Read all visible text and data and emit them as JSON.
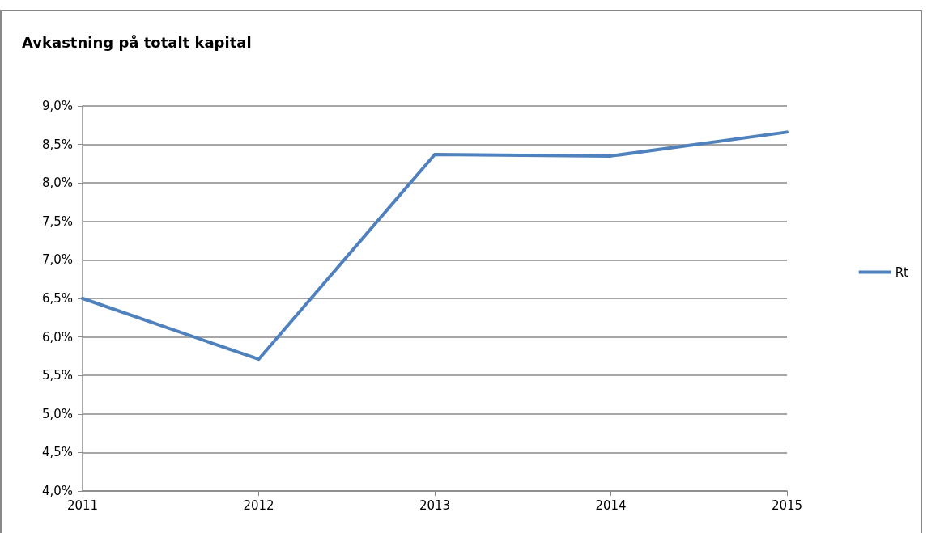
{
  "chart_data": {
    "type": "line",
    "title": "Avkastning på totalt kapital",
    "categories": [
      "2011",
      "2012",
      "2013",
      "2014",
      "2015"
    ],
    "series": [
      {
        "name": "Rt",
        "color": "#4f81bd",
        "values": [
          6.5,
          5.71,
          8.37,
          8.35,
          8.66
        ]
      }
    ],
    "ylim": [
      4.0,
      9.0
    ],
    "yticks": [
      {
        "value": 4.0,
        "label": "4,0%"
      },
      {
        "value": 4.5,
        "label": "4,5%"
      },
      {
        "value": 5.0,
        "label": "5,0%"
      },
      {
        "value": 5.5,
        "label": "5,5%"
      },
      {
        "value": 6.0,
        "label": "6,0%"
      },
      {
        "value": 6.5,
        "label": "6,5%"
      },
      {
        "value": 7.0,
        "label": "7,0%"
      },
      {
        "value": 7.5,
        "label": "7,5%"
      },
      {
        "value": 8.0,
        "label": "8,0%"
      },
      {
        "value": 8.5,
        "label": "8,5%"
      },
      {
        "value": 9.0,
        "label": "9,0%"
      }
    ],
    "grid": "y",
    "legend": "right",
    "marker": "none",
    "line_style": "solid"
  }
}
